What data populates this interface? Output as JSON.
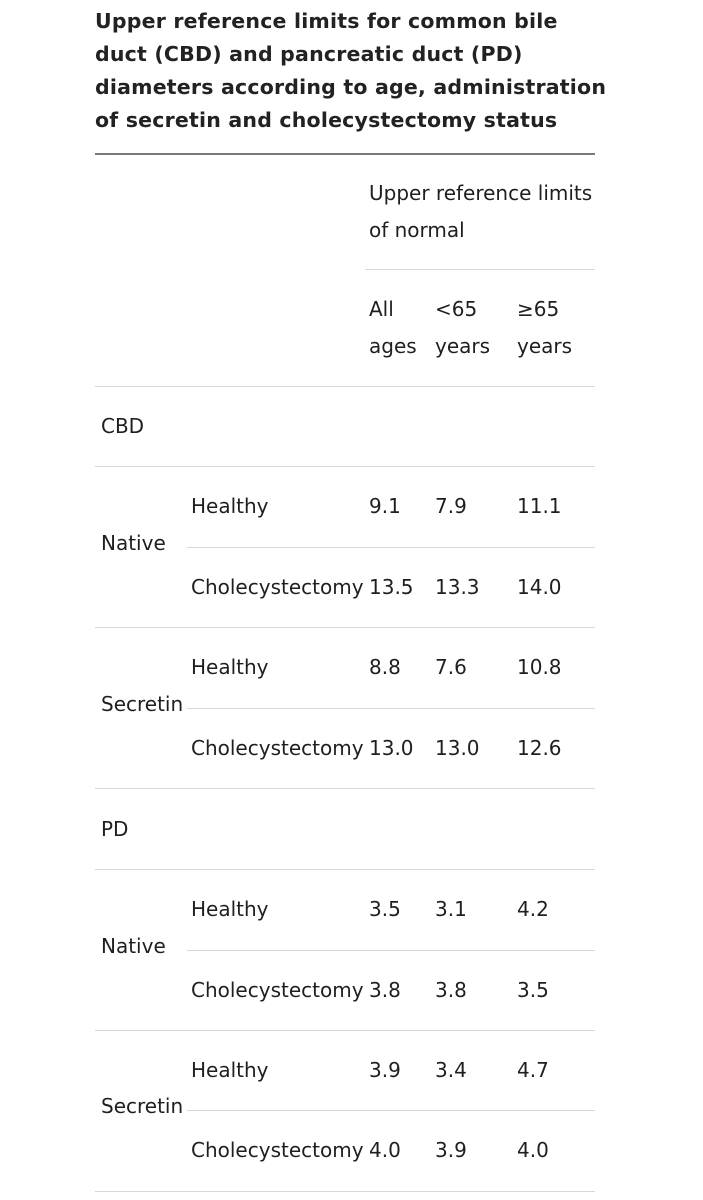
{
  "title": "Upper reference limits for common bile duct (CBD) and pancreatic duct (PD) diameters according to age, administration of secretin and cholecystectomy status",
  "header": {
    "group_label": "Upper reference limits of normal",
    "columns": [
      {
        "line1": "All",
        "line2": "ages"
      },
      {
        "line1": "<65",
        "line2": "years"
      },
      {
        "line1": "≥65",
        "line2": "years"
      }
    ]
  },
  "sections": [
    {
      "label": "CBD",
      "groups": [
        {
          "label": "Native",
          "rows": [
            {
              "label": "Healthy",
              "values": [
                "9.1",
                "7.9",
                "11.1"
              ]
            },
            {
              "label": "Cholecystectomy",
              "values": [
                "13.5",
                "13.3",
                "14.0"
              ]
            }
          ]
        },
        {
          "label": "Secretin",
          "rows": [
            {
              "label": "Healthy",
              "values": [
                "8.8",
                "7.6",
                "10.8"
              ]
            },
            {
              "label": "Cholecystectomy",
              "values": [
                "13.0",
                "13.0",
                "12.6"
              ]
            }
          ]
        }
      ]
    },
    {
      "label": "PD",
      "groups": [
        {
          "label": "Native",
          "rows": [
            {
              "label": "Healthy",
              "values": [
                "3.5",
                "3.1",
                "4.2"
              ]
            },
            {
              "label": "Cholecystectomy",
              "values": [
                "3.8",
                "3.8",
                "3.5"
              ]
            }
          ]
        },
        {
          "label": "Secretin",
          "rows": [
            {
              "label": "Healthy",
              "values": [
                "3.9",
                "3.4",
                "4.7"
              ]
            },
            {
              "label": "Cholecystectomy",
              "values": [
                "4.0",
                "3.9",
                "4.0"
              ]
            }
          ]
        }
      ]
    }
  ]
}
